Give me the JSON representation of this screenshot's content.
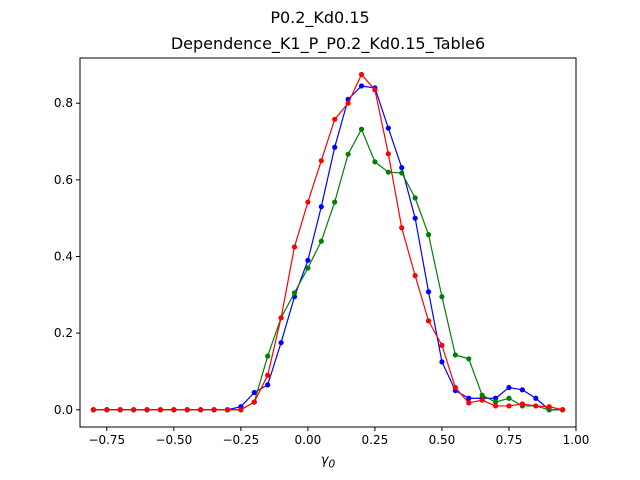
{
  "chart_data": {
    "type": "line",
    "suptitle": "P0.2_Kd0.15",
    "title": "Dependence_K1_P_P0.2_Kd0.15_Table6",
    "xlabel": "γ",
    "xlabel_sub": "0",
    "ylabel": "",
    "xlim": [
      -0.85,
      1.0
    ],
    "ylim": [
      -0.045,
      0.918
    ],
    "xticks": [
      -0.75,
      -0.5,
      -0.25,
      0.0,
      0.25,
      0.5,
      0.75,
      1.0
    ],
    "xtick_labels": [
      "−0.75",
      "−0.50",
      "−0.25",
      "0.00",
      "0.25",
      "0.50",
      "0.75",
      "1.00"
    ],
    "yticks": [
      0.0,
      0.2,
      0.4,
      0.6,
      0.8
    ],
    "ytick_labels": [
      "0.0",
      "0.2",
      "0.4",
      "0.6",
      "0.8"
    ],
    "grid": false,
    "legend": "none",
    "x": [
      -0.8,
      -0.75,
      -0.7,
      -0.65,
      -0.6,
      -0.55,
      -0.5,
      -0.45,
      -0.4,
      -0.35,
      -0.3,
      -0.25,
      -0.2,
      -0.15,
      -0.1,
      -0.05,
      0.0,
      0.05,
      0.1,
      0.15,
      0.2,
      0.25,
      0.3,
      0.35,
      0.4,
      0.45,
      0.5,
      0.55,
      0.6,
      0.65,
      0.7,
      0.75,
      0.8,
      0.85,
      0.9,
      0.95
    ],
    "series": [
      {
        "color": "#0000ff",
        "values": [
          0.0,
          0.0,
          0.0,
          0.0,
          0.0,
          0.0,
          0.0,
          0.0,
          0.0,
          0.0,
          0.0,
          0.008,
          0.045,
          0.065,
          0.175,
          0.295,
          0.39,
          0.53,
          0.685,
          0.81,
          0.845,
          0.84,
          0.735,
          0.632,
          0.5,
          0.308,
          0.125,
          0.05,
          0.03,
          0.03,
          0.03,
          0.058,
          0.052,
          0.03,
          0.0,
          0.0
        ]
      },
      {
        "color": "#008000",
        "values": [
          0.0,
          0.0,
          0.0,
          0.0,
          0.0,
          0.0,
          0.0,
          0.0,
          0.0,
          0.0,
          0.0,
          0.0,
          0.02,
          0.14,
          0.24,
          0.305,
          0.37,
          0.44,
          0.542,
          0.667,
          0.732,
          0.647,
          0.62,
          0.618,
          0.553,
          0.457,
          0.295,
          0.143,
          0.133,
          0.038,
          0.02,
          0.03,
          0.01,
          0.01,
          0.0,
          0.0
        ]
      },
      {
        "color": "#ff0000",
        "values": [
          0.0,
          0.0,
          0.0,
          0.0,
          0.0,
          0.0,
          0.0,
          0.0,
          0.0,
          0.0,
          0.0,
          0.0,
          0.02,
          0.09,
          0.24,
          0.425,
          0.542,
          0.65,
          0.758,
          0.8,
          0.875,
          0.835,
          0.668,
          0.475,
          0.35,
          0.232,
          0.168,
          0.058,
          0.018,
          0.025,
          0.01,
          0.01,
          0.015,
          0.01,
          0.008,
          0.0
        ]
      }
    ]
  }
}
